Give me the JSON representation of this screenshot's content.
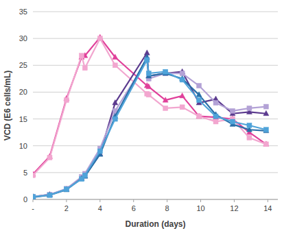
{
  "chart_data": {
    "type": "line",
    "x_label": "Duration (days)",
    "y_label": "VCD  (E6 cells/mL)",
    "x": [
      0,
      1,
      2,
      2.9,
      3.1,
      4,
      4.9,
      6.8,
      6.9,
      7.9,
      8.9,
      9.9,
      10.9,
      11.9,
      12.9,
      13.9
    ],
    "series": [
      {
        "color": "#e0409a",
        "marker": "triangle",
        "values": [
          4.7,
          8,
          18.8,
          26.5,
          26.8,
          30.2,
          26.5,
          21.2,
          21,
          18.5,
          19.3,
          15.5,
          15.3,
          15,
          12.5,
          10.3
        ]
      },
      {
        "color": "#f2a6cf",
        "marker": "square",
        "values": [
          4.5,
          7.8,
          18.5,
          26.8,
          24.5,
          30,
          25,
          19.7,
          19.5,
          17,
          17.2,
          15.5,
          14.5,
          15,
          11.5,
          10.3
        ]
      },
      {
        "color": "#5b3a8e",
        "marker": "triangle",
        "values": [
          0.5,
          0.9,
          1.9,
          4,
          4.4,
          8.5,
          18,
          27.3,
          23,
          23.5,
          23.8,
          18,
          18.7,
          16,
          16.3,
          16
        ]
      },
      {
        "color": "#b3a2d6",
        "marker": "square",
        "values": [
          0.5,
          0.9,
          2,
          4.2,
          4.8,
          9.5,
          16.5,
          26,
          22.5,
          23.5,
          23.5,
          21.2,
          18,
          16.5,
          17,
          17.3
        ]
      },
      {
        "color": "#2a6fa8",
        "marker": "triangle",
        "values": [
          0.4,
          0.8,
          1.8,
          3.9,
          4.3,
          8.4,
          15.5,
          26.5,
          23,
          23.5,
          22.5,
          19.5,
          15.8,
          14,
          13,
          12.8
        ]
      },
      {
        "color": "#4fa3d9",
        "marker": "square",
        "values": [
          0.5,
          0.8,
          1.9,
          3.8,
          4.5,
          9,
          15,
          26,
          23.5,
          23.8,
          22.3,
          18.5,
          15.5,
          14.5,
          13.8,
          13
        ]
      }
    ],
    "xlim": [
      0,
      14.6
    ],
    "xticks": [
      {
        "value": 0,
        "label": "-"
      },
      2,
      4,
      6,
      8,
      10,
      12,
      14
    ],
    "ylim": [
      0,
      35
    ],
    "yticks": [
      0,
      5,
      10,
      15,
      20,
      25,
      30,
      35
    ],
    "grid": true
  }
}
